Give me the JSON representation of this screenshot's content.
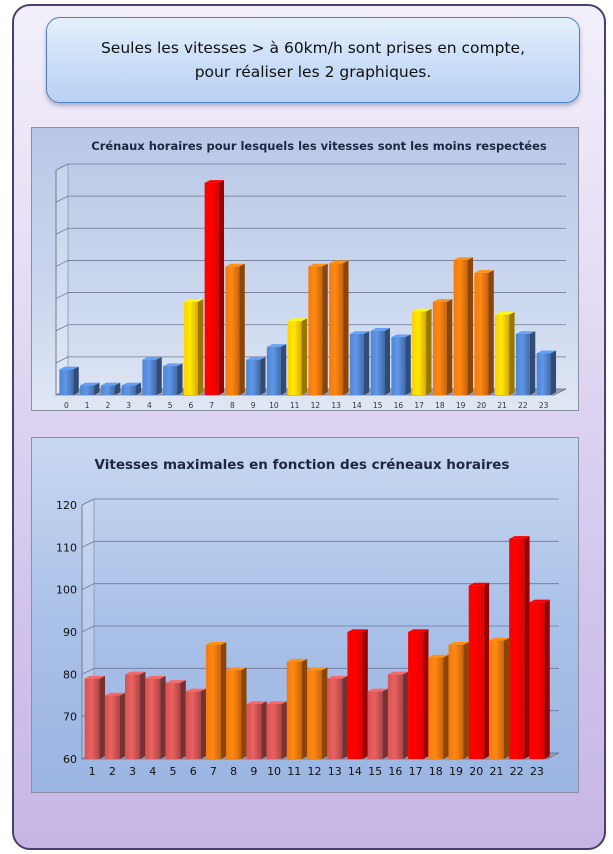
{
  "callout": {
    "line1": "Seules les vitesses > à 60km/h sont prises en compte,",
    "line2": "pour réaliser les 2 graphiques."
  },
  "colors": {
    "blue": "#4d7bbf",
    "yellow": "#f5c000",
    "orange": "#e2700e",
    "red": "#ff0000",
    "brick": "#c24f4f"
  },
  "chart_data": [
    {
      "type": "bar",
      "title": "Crénaux horaires pour lesquels les vitesses sont les moins respectées",
      "xlabel": "",
      "ylabel": "",
      "categories": [
        "0",
        "1",
        "2",
        "3",
        "4",
        "5",
        "6",
        "7",
        "8",
        "9",
        "10",
        "11",
        "12",
        "13",
        "14",
        "15",
        "16",
        "17",
        "18",
        "19",
        "20",
        "21",
        "22",
        "23"
      ],
      "values": [
        8,
        3,
        3,
        3,
        11,
        9,
        29,
        66,
        40,
        11,
        15,
        23,
        40,
        41,
        19,
        20,
        18,
        26,
        29,
        42,
        38,
        25,
        19,
        13
      ],
      "bar_colors": [
        "blue",
        "blue",
        "blue",
        "blue",
        "blue",
        "blue",
        "yellow",
        "red",
        "orange",
        "blue",
        "blue",
        "yellow",
        "orange",
        "orange",
        "blue",
        "blue",
        "blue",
        "yellow",
        "orange",
        "orange",
        "orange",
        "yellow",
        "blue",
        "blue"
      ],
      "ylim": [
        0,
        70
      ],
      "y_tick_labels_shown": false,
      "grid": true
    },
    {
      "type": "bar",
      "title": "Vitesses maximales en fonction des créneaux horaires",
      "xlabel": "",
      "ylabel": "",
      "categories": [
        "1",
        "2",
        "3",
        "4",
        "5",
        "6",
        "7",
        "8",
        "9",
        "10",
        "11",
        "12",
        "13",
        "14",
        "15",
        "16",
        "17",
        "18",
        "19",
        "20",
        "21",
        "22",
        "23"
      ],
      "values": [
        79,
        75,
        80,
        79,
        78,
        76,
        87,
        81,
        73,
        73,
        83,
        81,
        79,
        90,
        76,
        80,
        90,
        84,
        87,
        101,
        88,
        112,
        97
      ],
      "bar_colors": [
        "brick",
        "brick",
        "brick",
        "brick",
        "brick",
        "brick",
        "orange",
        "orange",
        "brick",
        "brick",
        "orange",
        "orange",
        "brick",
        "red",
        "brick",
        "brick",
        "red",
        "orange",
        "orange",
        "red",
        "orange",
        "red",
        "red"
      ],
      "ylim": [
        60,
        120
      ],
      "yticks": [
        60,
        70,
        80,
        90,
        100,
        110,
        120
      ],
      "grid": true
    }
  ]
}
